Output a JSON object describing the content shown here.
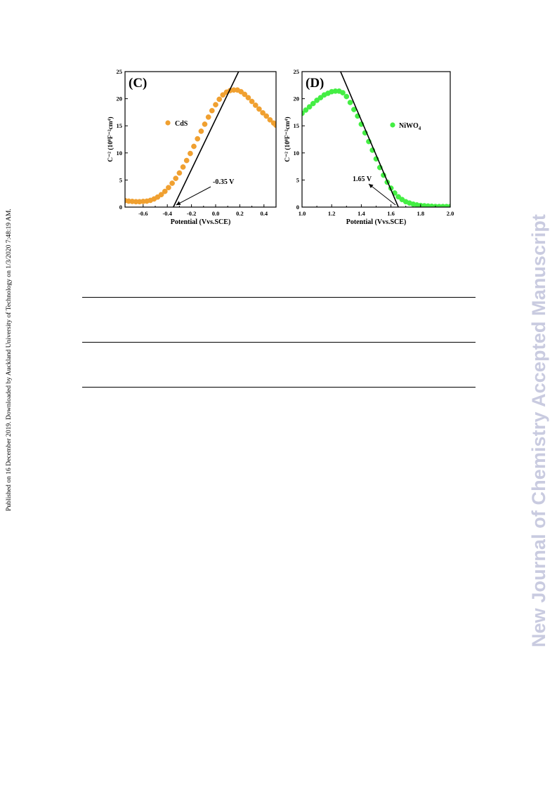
{
  "side_note": "Published on 16 December 2019. Downloaded by Auckland University of Technology on 1/3/2020 7:48:19 AM.",
  "watermark": "New Journal of Chemistry Accepted Manuscript",
  "colors": {
    "cds": "#f0a030",
    "niwo4": "#44ee44",
    "line": "#000000"
  },
  "chart_data": [
    {
      "type": "scatter",
      "panel_label": "(C)",
      "xlabel": "Potential (Vvs.SCE)",
      "ylabel": "C⁻² (10⁸F⁻²cm⁴)",
      "xlim": [
        -0.75,
        0.5
      ],
      "ylim": [
        0,
        25
      ],
      "xticks": [
        -0.6,
        -0.4,
        -0.2,
        0.0,
        0.2,
        0.4
      ],
      "xtick_labels": [
        "-0.6",
        "-0.4",
        "-0.2",
        "0.0",
        "0.2",
        "0.4"
      ],
      "yticks": [
        0,
        5,
        10,
        15,
        20,
        25
      ],
      "ytick_labels": [
        "0",
        "5",
        "10",
        "15",
        "20",
        "25"
      ],
      "legend": {
        "label": "CdS",
        "position": "upper-left"
      },
      "annotation": "-0.35 V",
      "annotation_point": [
        -0.35,
        0
      ],
      "fit_line": [
        [
          -0.35,
          0
        ],
        [
          0.19,
          25
        ]
      ],
      "series": [
        {
          "name": "CdS",
          "x": [
            -0.75,
            -0.72,
            -0.69,
            -0.66,
            -0.63,
            -0.6,
            -0.57,
            -0.54,
            -0.51,
            -0.48,
            -0.45,
            -0.42,
            -0.39,
            -0.36,
            -0.33,
            -0.3,
            -0.27,
            -0.24,
            -0.21,
            -0.18,
            -0.15,
            -0.12,
            -0.09,
            -0.06,
            -0.03,
            0.0,
            0.03,
            0.06,
            0.09,
            0.12,
            0.15,
            0.18,
            0.21,
            0.24,
            0.27,
            0.3,
            0.33,
            0.36,
            0.39,
            0.42,
            0.45,
            0.48,
            0.5
          ],
          "y": [
            1.2,
            1.1,
            1.05,
            1.0,
            1.0,
            1.05,
            1.1,
            1.25,
            1.5,
            1.85,
            2.3,
            2.9,
            3.6,
            4.4,
            5.3,
            6.3,
            7.4,
            8.6,
            9.9,
            11.2,
            12.6,
            14.0,
            15.3,
            16.6,
            17.8,
            18.9,
            19.9,
            20.7,
            21.2,
            21.5,
            21.6,
            21.6,
            21.3,
            20.8,
            20.2,
            19.5,
            18.8,
            18.1,
            17.4,
            16.8,
            16.1,
            15.5,
            15.1
          ]
        }
      ]
    },
    {
      "type": "scatter",
      "panel_label": "(D)",
      "xlabel": "Potential (Vvs.SCE)",
      "ylabel": "C⁻² (10⁸F⁻²cm⁴)",
      "xlim": [
        1.0,
        2.0
      ],
      "ylim": [
        0,
        25
      ],
      "xticks": [
        1.0,
        1.2,
        1.4,
        1.6,
        1.8,
        2.0
      ],
      "xtick_labels": [
        "1.0",
        "1.2",
        "1.4",
        "1.6",
        "1.8",
        "2.0"
      ],
      "yticks": [
        0,
        5,
        10,
        15,
        20,
        25
      ],
      "ytick_labels": [
        "0",
        "5",
        "10",
        "15",
        "20",
        "25"
      ],
      "legend": {
        "label": "NiWO",
        "subscript": "4",
        "position": "upper-right"
      },
      "annotation": "1.65 V",
      "annotation_point": [
        1.65,
        0
      ],
      "fit_line": [
        [
          1.26,
          25
        ],
        [
          1.65,
          0
        ]
      ],
      "series": [
        {
          "name": "NiWO4",
          "x": [
            1.0,
            1.025,
            1.05,
            1.075,
            1.1,
            1.125,
            1.15,
            1.175,
            1.2,
            1.225,
            1.25,
            1.275,
            1.3,
            1.325,
            1.35,
            1.375,
            1.4,
            1.425,
            1.45,
            1.475,
            1.5,
            1.525,
            1.55,
            1.575,
            1.6,
            1.625,
            1.65,
            1.675,
            1.7,
            1.725,
            1.75,
            1.775,
            1.8,
            1.825,
            1.85,
            1.875,
            1.9,
            1.925,
            1.95,
            1.975,
            2.0
          ],
          "y": [
            17.3,
            17.9,
            18.5,
            19.1,
            19.7,
            20.2,
            20.7,
            21.0,
            21.3,
            21.4,
            21.4,
            21.1,
            20.4,
            19.3,
            18.0,
            16.8,
            15.3,
            13.7,
            12.1,
            10.5,
            8.9,
            7.3,
            5.9,
            4.6,
            3.5,
            2.6,
            1.9,
            1.4,
            1.0,
            0.75,
            0.55,
            0.4,
            0.3,
            0.25,
            0.2,
            0.15,
            0.12,
            0.1,
            0.1,
            0.1,
            0.1
          ]
        }
      ]
    }
  ]
}
